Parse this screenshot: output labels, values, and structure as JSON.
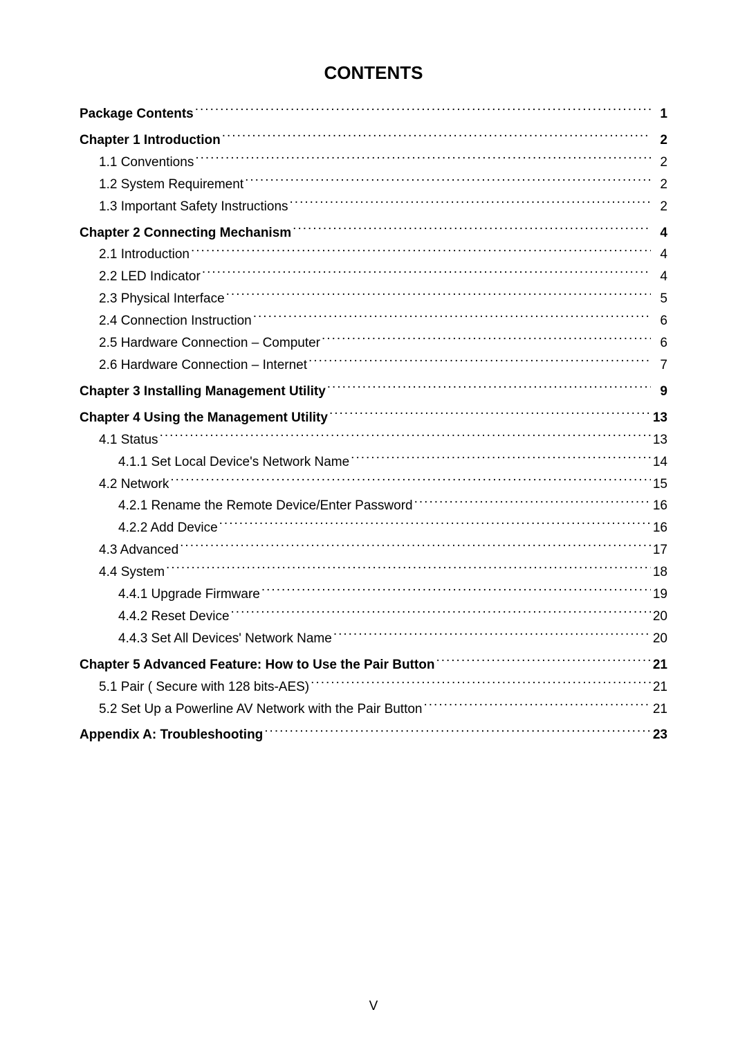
{
  "title": "CONTENTS",
  "footer": "V",
  "entries": [
    {
      "label": "Package Contents",
      "page": "1",
      "indent": 0,
      "bold": true
    },
    {
      "label": "Chapter 1 Introduction",
      "page": "2",
      "indent": 0,
      "bold": true
    },
    {
      "label": "1.1 Conventions",
      "page": "2",
      "indent": 1,
      "bold": false
    },
    {
      "label": "1.2 System Requirement",
      "page": "2",
      "indent": 1,
      "bold": false
    },
    {
      "label": "1.3 Important Safety Instructions",
      "page": "2",
      "indent": 1,
      "bold": false
    },
    {
      "label": "Chapter 2 Connecting Mechanism",
      "page": "4",
      "indent": 0,
      "bold": true
    },
    {
      "label": "2.1 Introduction",
      "page": "4",
      "indent": 1,
      "bold": false
    },
    {
      "label": "2.2 LED Indicator",
      "page": "4",
      "indent": 1,
      "bold": false
    },
    {
      "label": "2.3 Physical Interface",
      "page": "5",
      "indent": 1,
      "bold": false
    },
    {
      "label": "2.4 Connection Instruction",
      "page": "6",
      "indent": 1,
      "bold": false
    },
    {
      "label": "2.5 Hardware Connection – Computer",
      "page": "6",
      "indent": 1,
      "bold": false
    },
    {
      "label": "2.6 Hardware Connection – Internet",
      "page": "7",
      "indent": 1,
      "bold": false
    },
    {
      "label": "Chapter 3 Installing Management Utility",
      "page": "9",
      "indent": 0,
      "bold": true
    },
    {
      "label": "Chapter 4 Using the Management Utility",
      "page": "13",
      "indent": 0,
      "bold": true
    },
    {
      "label": "4.1 Status",
      "page": "13",
      "indent": 1,
      "bold": false
    },
    {
      "label": "4.1.1 Set Local Device's Network Name",
      "page": "14",
      "indent": 2,
      "bold": false
    },
    {
      "label": "4.2 Network",
      "page": "15",
      "indent": 1,
      "bold": false
    },
    {
      "label": "4.2.1 Rename the Remote Device/Enter Password",
      "page": "16",
      "indent": 2,
      "bold": false
    },
    {
      "label": "4.2.2 Add Device",
      "page": "16",
      "indent": 2,
      "bold": false
    },
    {
      "label": "4.3 Advanced",
      "page": "17",
      "indent": 1,
      "bold": false
    },
    {
      "label": "4.4 System",
      "page": "18",
      "indent": 1,
      "bold": false
    },
    {
      "label": "4.4.1 Upgrade Firmware",
      "page": "19",
      "indent": 2,
      "bold": false
    },
    {
      "label": "4.4.2 Reset Device",
      "page": "20",
      "indent": 2,
      "bold": false
    },
    {
      "label": "4.4.3 Set All Devices' Network Name",
      "page": "20",
      "indent": 2,
      "bold": false
    },
    {
      "label": "Chapter 5 Advanced Feature: How to Use the Pair Button",
      "page": "21",
      "indent": 0,
      "bold": true
    },
    {
      "label": "5.1 Pair ( Secure with 128 bits-AES)",
      "page": "21",
      "indent": 1,
      "bold": false
    },
    {
      "label": "5.2 Set Up a Powerline AV Network with the Pair Button",
      "page": "21",
      "indent": 1,
      "bold": false
    },
    {
      "label": "Appendix A: Troubleshooting",
      "page": "23",
      "indent": 0,
      "bold": true
    }
  ]
}
